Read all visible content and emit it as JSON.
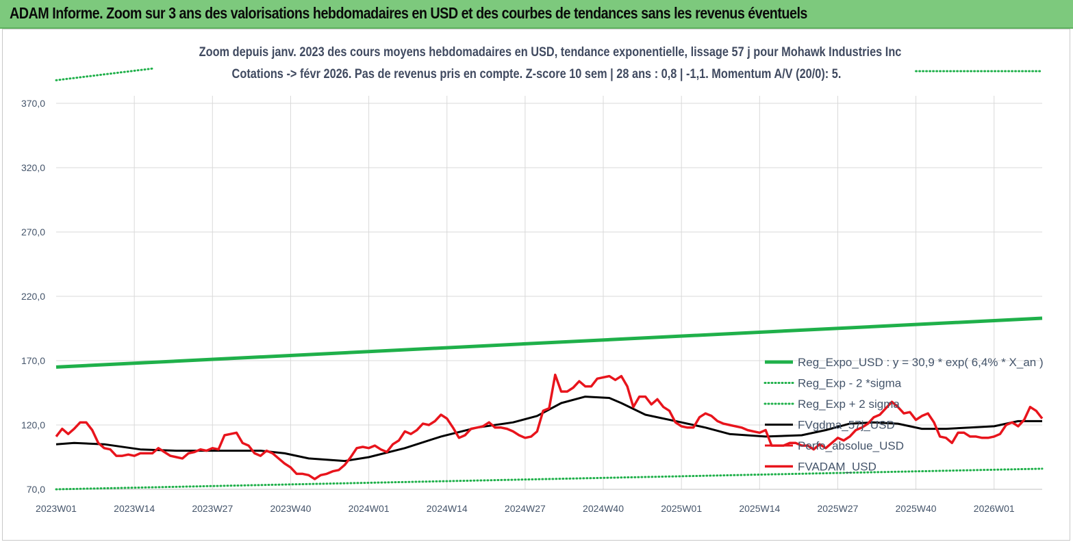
{
  "banner": {
    "title": "ADAM Informe. Zoom sur 3 ans des valorisations hebdomadaires en USD et des courbes de tendances sans les revenus éventuels"
  },
  "chart_data": {
    "type": "line",
    "title": "Zoom depuis janv. 2023 des cours moyens hebdomadaires en USD, tendance exponentielle, lissage 57 j pour Mohawk Industries Inc",
    "subtitle": "Cotations -> févr 2026.  Pas de revenus pris en compte. Z-score 10 sem  | 28 ans : 0,8 | -1,1. Momentum A/V (20/0): 5.",
    "xlabel": "",
    "ylabel": "",
    "ylim": [
      70,
      390
    ],
    "yticks": [
      "70,0",
      "120,0",
      "170,0",
      "220,0",
      "270,0",
      "320,0",
      "370,0"
    ],
    "ytick_values": [
      70,
      120,
      170,
      220,
      270,
      320,
      370
    ],
    "xticks": [
      "2023W01",
      "2023W14",
      "2023W27",
      "2023W40",
      "2024W01",
      "2024W14",
      "2024W27",
      "2024W40",
      "2025W01",
      "2025W14",
      "2025W27",
      "2025W40",
      "2026W01"
    ],
    "x_range_weeks": [
      0,
      164
    ],
    "grid": true,
    "legend_position": "right-inside",
    "colors": {
      "reg_expo": "#1fb04a",
      "sigma": "#1fb04a",
      "smooth": "#000000",
      "adam": "#e8141c"
    },
    "series": [
      {
        "name": "Reg_Expo_USD : y = 30,9 * exp( 6,4% *  X_an )",
        "style": "thick",
        "x": [
          0,
          164
        ],
        "values": [
          165,
          203
        ]
      },
      {
        "name": "Reg_Exp - 2 *sigma",
        "style": "dotted",
        "x": [
          0,
          164
        ],
        "values": [
          70,
          86
        ]
      },
      {
        "name": "Reg_Exp + 2 sigma",
        "style": "dotted",
        "x": [
          0,
          16,
          143,
          164
        ],
        "values": [
          388,
          397,
          395,
          395
        ]
      },
      {
        "name": "FVgdma_57j_USD",
        "style": "solid",
        "x": [
          0,
          3,
          8,
          14,
          20,
          26,
          30,
          34,
          38,
          42,
          48,
          52,
          58,
          64,
          70,
          76,
          80,
          84,
          88,
          92,
          94,
          98,
          104,
          108,
          112,
          118,
          124,
          128,
          132,
          136,
          140,
          144,
          148,
          152,
          156,
          160,
          164
        ],
        "values": [
          105,
          106,
          105,
          101,
          100,
          100,
          100,
          100,
          98,
          94,
          92,
          95,
          102,
          111,
          118,
          122,
          127,
          137,
          142,
          141,
          137,
          128,
          122,
          118,
          113,
          111,
          112,
          116,
          121,
          122,
          121,
          117,
          117,
          118,
          119,
          123,
          123
        ]
      },
      {
        "name": "Perfo_absolue_USD",
        "style": "solid",
        "x": [],
        "values": []
      },
      {
        "name": "FVADAM_USD",
        "style": "solid",
        "x": [
          0,
          1,
          2,
          3,
          4,
          5,
          6,
          7,
          8,
          9,
          10,
          11,
          12,
          13,
          14,
          15,
          16,
          17,
          18,
          19,
          20,
          21,
          22,
          23,
          24,
          25,
          26,
          27,
          28,
          29,
          30,
          31,
          32,
          33,
          34,
          35,
          36,
          37,
          38,
          39,
          40,
          41,
          42,
          43,
          44,
          45,
          46,
          47,
          48,
          49,
          50,
          51,
          52,
          53,
          54,
          55,
          56,
          57,
          58,
          59,
          60,
          61,
          62,
          63,
          64,
          65,
          66,
          67,
          68,
          69,
          70,
          71,
          72,
          73,
          74,
          75,
          76,
          77,
          78,
          79,
          80,
          81,
          82,
          83,
          84,
          85,
          86,
          87,
          88,
          89,
          90,
          91,
          92,
          93,
          94,
          95,
          96,
          97,
          98,
          99,
          100,
          101,
          102,
          103,
          104,
          105,
          106,
          107,
          108,
          109,
          110,
          111,
          112,
          113,
          114,
          115,
          116,
          117,
          118,
          119,
          120,
          121,
          122,
          123,
          124,
          125,
          126,
          127,
          128,
          129,
          130,
          131,
          132,
          133,
          134,
          135,
          136,
          137,
          138,
          139,
          140,
          141,
          142,
          143,
          144,
          145,
          146,
          147,
          148,
          149,
          150,
          151,
          152,
          153,
          154,
          155,
          156,
          157,
          158,
          159,
          160,
          161,
          162,
          163,
          164
        ],
        "values": [
          111,
          117,
          113,
          117,
          122,
          122,
          116,
          106,
          102,
          101,
          96,
          96,
          97,
          96,
          98,
          98,
          98,
          102,
          99,
          96,
          95,
          94,
          98,
          99,
          101,
          100,
          102,
          101,
          112,
          113,
          114,
          106,
          104,
          98,
          96,
          100,
          98,
          94,
          90,
          87,
          82,
          82,
          81,
          78,
          81,
          82,
          84,
          85,
          89,
          95,
          102,
          103,
          102,
          104,
          101,
          99,
          105,
          108,
          115,
          113,
          116,
          121,
          120,
          123,
          128,
          125,
          118,
          110,
          112,
          117,
          118,
          119,
          122,
          118,
          118,
          117,
          115,
          112,
          110,
          111,
          115,
          131,
          133,
          159,
          146,
          146,
          149,
          154,
          150,
          150,
          156,
          157,
          158,
          155,
          158,
          150,
          134,
          142,
          142,
          136,
          140,
          134,
          131,
          122,
          119,
          118,
          118,
          126,
          129,
          127,
          123,
          121,
          120,
          119,
          118,
          116,
          115,
          114,
          116,
          104,
          104,
          104,
          106,
          106,
          104,
          104,
          101,
          105,
          102,
          106,
          110,
          108,
          111,
          116,
          118,
          121,
          126,
          128,
          133,
          138,
          134,
          129,
          130,
          124,
          127,
          129,
          122,
          111,
          110,
          106,
          114,
          114,
          111,
          111,
          110,
          110,
          111,
          113,
          120,
          122,
          119,
          124,
          134,
          131,
          125
        ]
      }
    ]
  }
}
